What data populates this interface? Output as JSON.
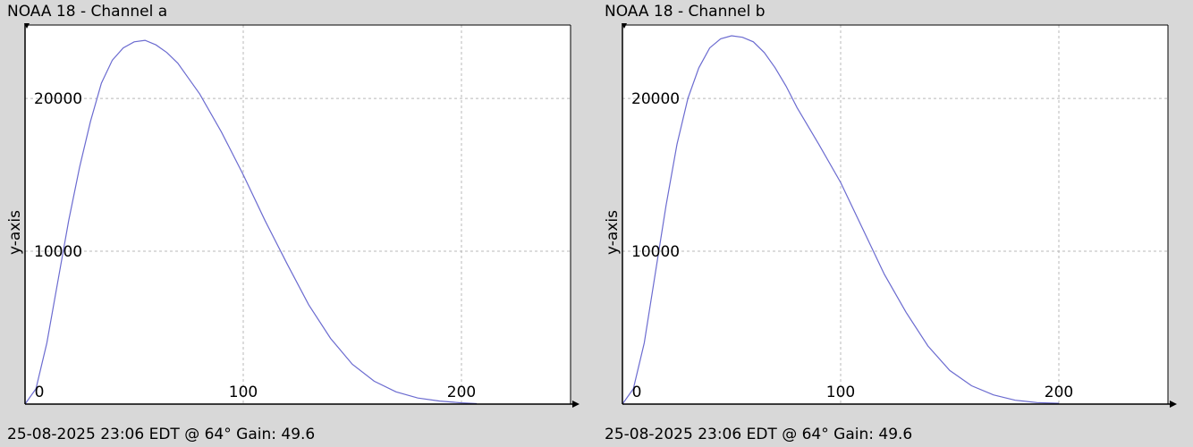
{
  "chart_data": [
    {
      "type": "line",
      "title": "NOAA 18 - Channel a",
      "footer": "25-08-2025 23:06 EDT @ 64° Gain: 49.6",
      "xlabel": "",
      "ylabel": "y-axis",
      "xlim": [
        0,
        250
      ],
      "ylim": [
        0,
        24800
      ],
      "x_ticks": [
        0,
        100,
        200
      ],
      "y_ticks": [
        10000,
        20000
      ],
      "grid": true,
      "line_color": "#6b6bd0",
      "series": [
        {
          "x": [
            0,
            5,
            10,
            15,
            20,
            25,
            30,
            35,
            40,
            45,
            50,
            55,
            60,
            65,
            70,
            75,
            80,
            90,
            100,
            110,
            120,
            130,
            140,
            150,
            160,
            170,
            180,
            190,
            200,
            207
          ],
          "values": [
            0,
            1000,
            4000,
            8000,
            12000,
            15500,
            18500,
            21000,
            22500,
            23300,
            23700,
            23800,
            23500,
            23000,
            22300,
            21300,
            20300,
            17800,
            15000,
            12000,
            9200,
            6500,
            4300,
            2600,
            1500,
            800,
            400,
            200,
            80,
            30
          ]
        }
      ]
    },
    {
      "type": "line",
      "title": "NOAA 18 - Channel b",
      "footer": "25-08-2025 23:06 EDT @ 64° Gain: 49.6",
      "xlabel": "",
      "ylabel": "y-axis",
      "xlim": [
        0,
        250
      ],
      "ylim": [
        0,
        24800
      ],
      "x_ticks": [
        0,
        100,
        200
      ],
      "y_ticks": [
        10000,
        20000
      ],
      "grid": true,
      "line_color": "#6b6bd0",
      "series": [
        {
          "x": [
            0,
            5,
            10,
            15,
            20,
            25,
            30,
            35,
            40,
            45,
            50,
            55,
            60,
            65,
            70,
            75,
            80,
            90,
            100,
            110,
            120,
            130,
            140,
            150,
            160,
            170,
            180,
            190,
            200
          ],
          "values": [
            0,
            1000,
            4000,
            8500,
            13000,
            17000,
            20000,
            22000,
            23300,
            23900,
            24100,
            24000,
            23700,
            23000,
            22000,
            20800,
            19400,
            17000,
            14500,
            11500,
            8500,
            6000,
            3800,
            2200,
            1200,
            600,
            250,
            100,
            50
          ]
        }
      ]
    }
  ]
}
